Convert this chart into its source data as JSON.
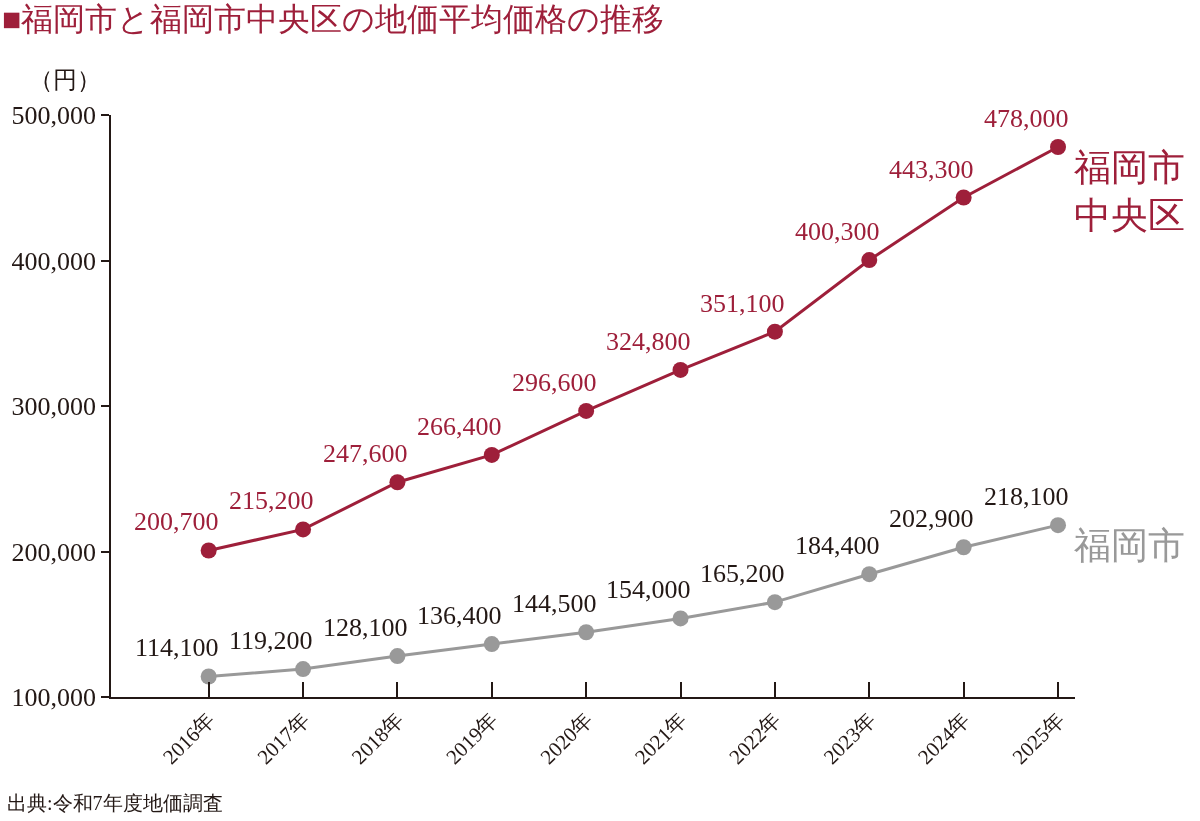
{
  "chart_data": {
    "type": "line",
    "title": "■福岡市と福岡市中央区の地価平均価格の推移",
    "ylabel": "（円）",
    "categories": [
      "2016年",
      "2017年",
      "2018年",
      "2019年",
      "2020年",
      "2021年",
      "2022年",
      "2023年",
      "2024年",
      "2025年"
    ],
    "series": [
      {
        "name": "福岡市中央区",
        "color": "#9e1f3a",
        "values": [
          200700,
          215200,
          247600,
          266400,
          296600,
          324800,
          351100,
          400300,
          443300,
          478000
        ],
        "value_labels": [
          "200,700",
          "215,200",
          "247,600",
          "266,400",
          "296,600",
          "324,800",
          "351,100",
          "400,300",
          "443,300",
          "478,000"
        ]
      },
      {
        "name": "福岡市",
        "color": "#999999",
        "values": [
          114100,
          119200,
          128100,
          136400,
          144500,
          154000,
          165200,
          184400,
          202900,
          218100
        ],
        "value_labels": [
          "114,100",
          "119,200",
          "128,100",
          "136,400",
          "144,500",
          "154,000",
          "165,200",
          "184,400",
          "202,900",
          "218,100"
        ]
      }
    ],
    "ylim": [
      100000,
      500000
    ],
    "yticks": [
      {
        "value": 100000,
        "label": "100,000"
      },
      {
        "value": 200000,
        "label": "200,000"
      },
      {
        "value": 300000,
        "label": "300,000"
      },
      {
        "value": 400000,
        "label": "400,000"
      },
      {
        "value": 500000,
        "label": "500,000"
      }
    ],
    "marker": "circle",
    "legend": false,
    "grid": false,
    "annotations": [
      "出典:令和7年度地価調査"
    ]
  }
}
